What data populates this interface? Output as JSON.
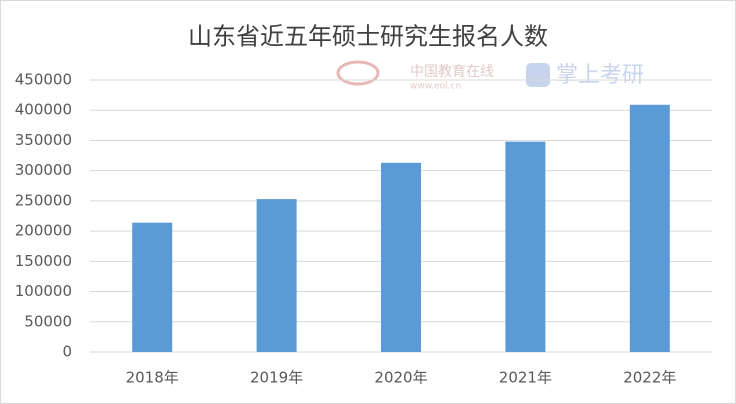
{
  "chart_data": {
    "type": "bar",
    "title": "山东省近五年硕士研究生报名人数",
    "categories": [
      "2018年",
      "2019年",
      "2020年",
      "2021年",
      "2022年"
    ],
    "values": [
      214000,
      253000,
      313000,
      348000,
      409000
    ],
    "color": "#5b9bd5",
    "ylim": [
      0,
      450000
    ],
    "yticks": [
      0,
      50000,
      100000,
      150000,
      200000,
      250000,
      300000,
      350000,
      400000,
      450000
    ],
    "grid": true,
    "watermarks": [
      "中国教育在线",
      "www.eol.cn",
      "掌上考研"
    ]
  }
}
